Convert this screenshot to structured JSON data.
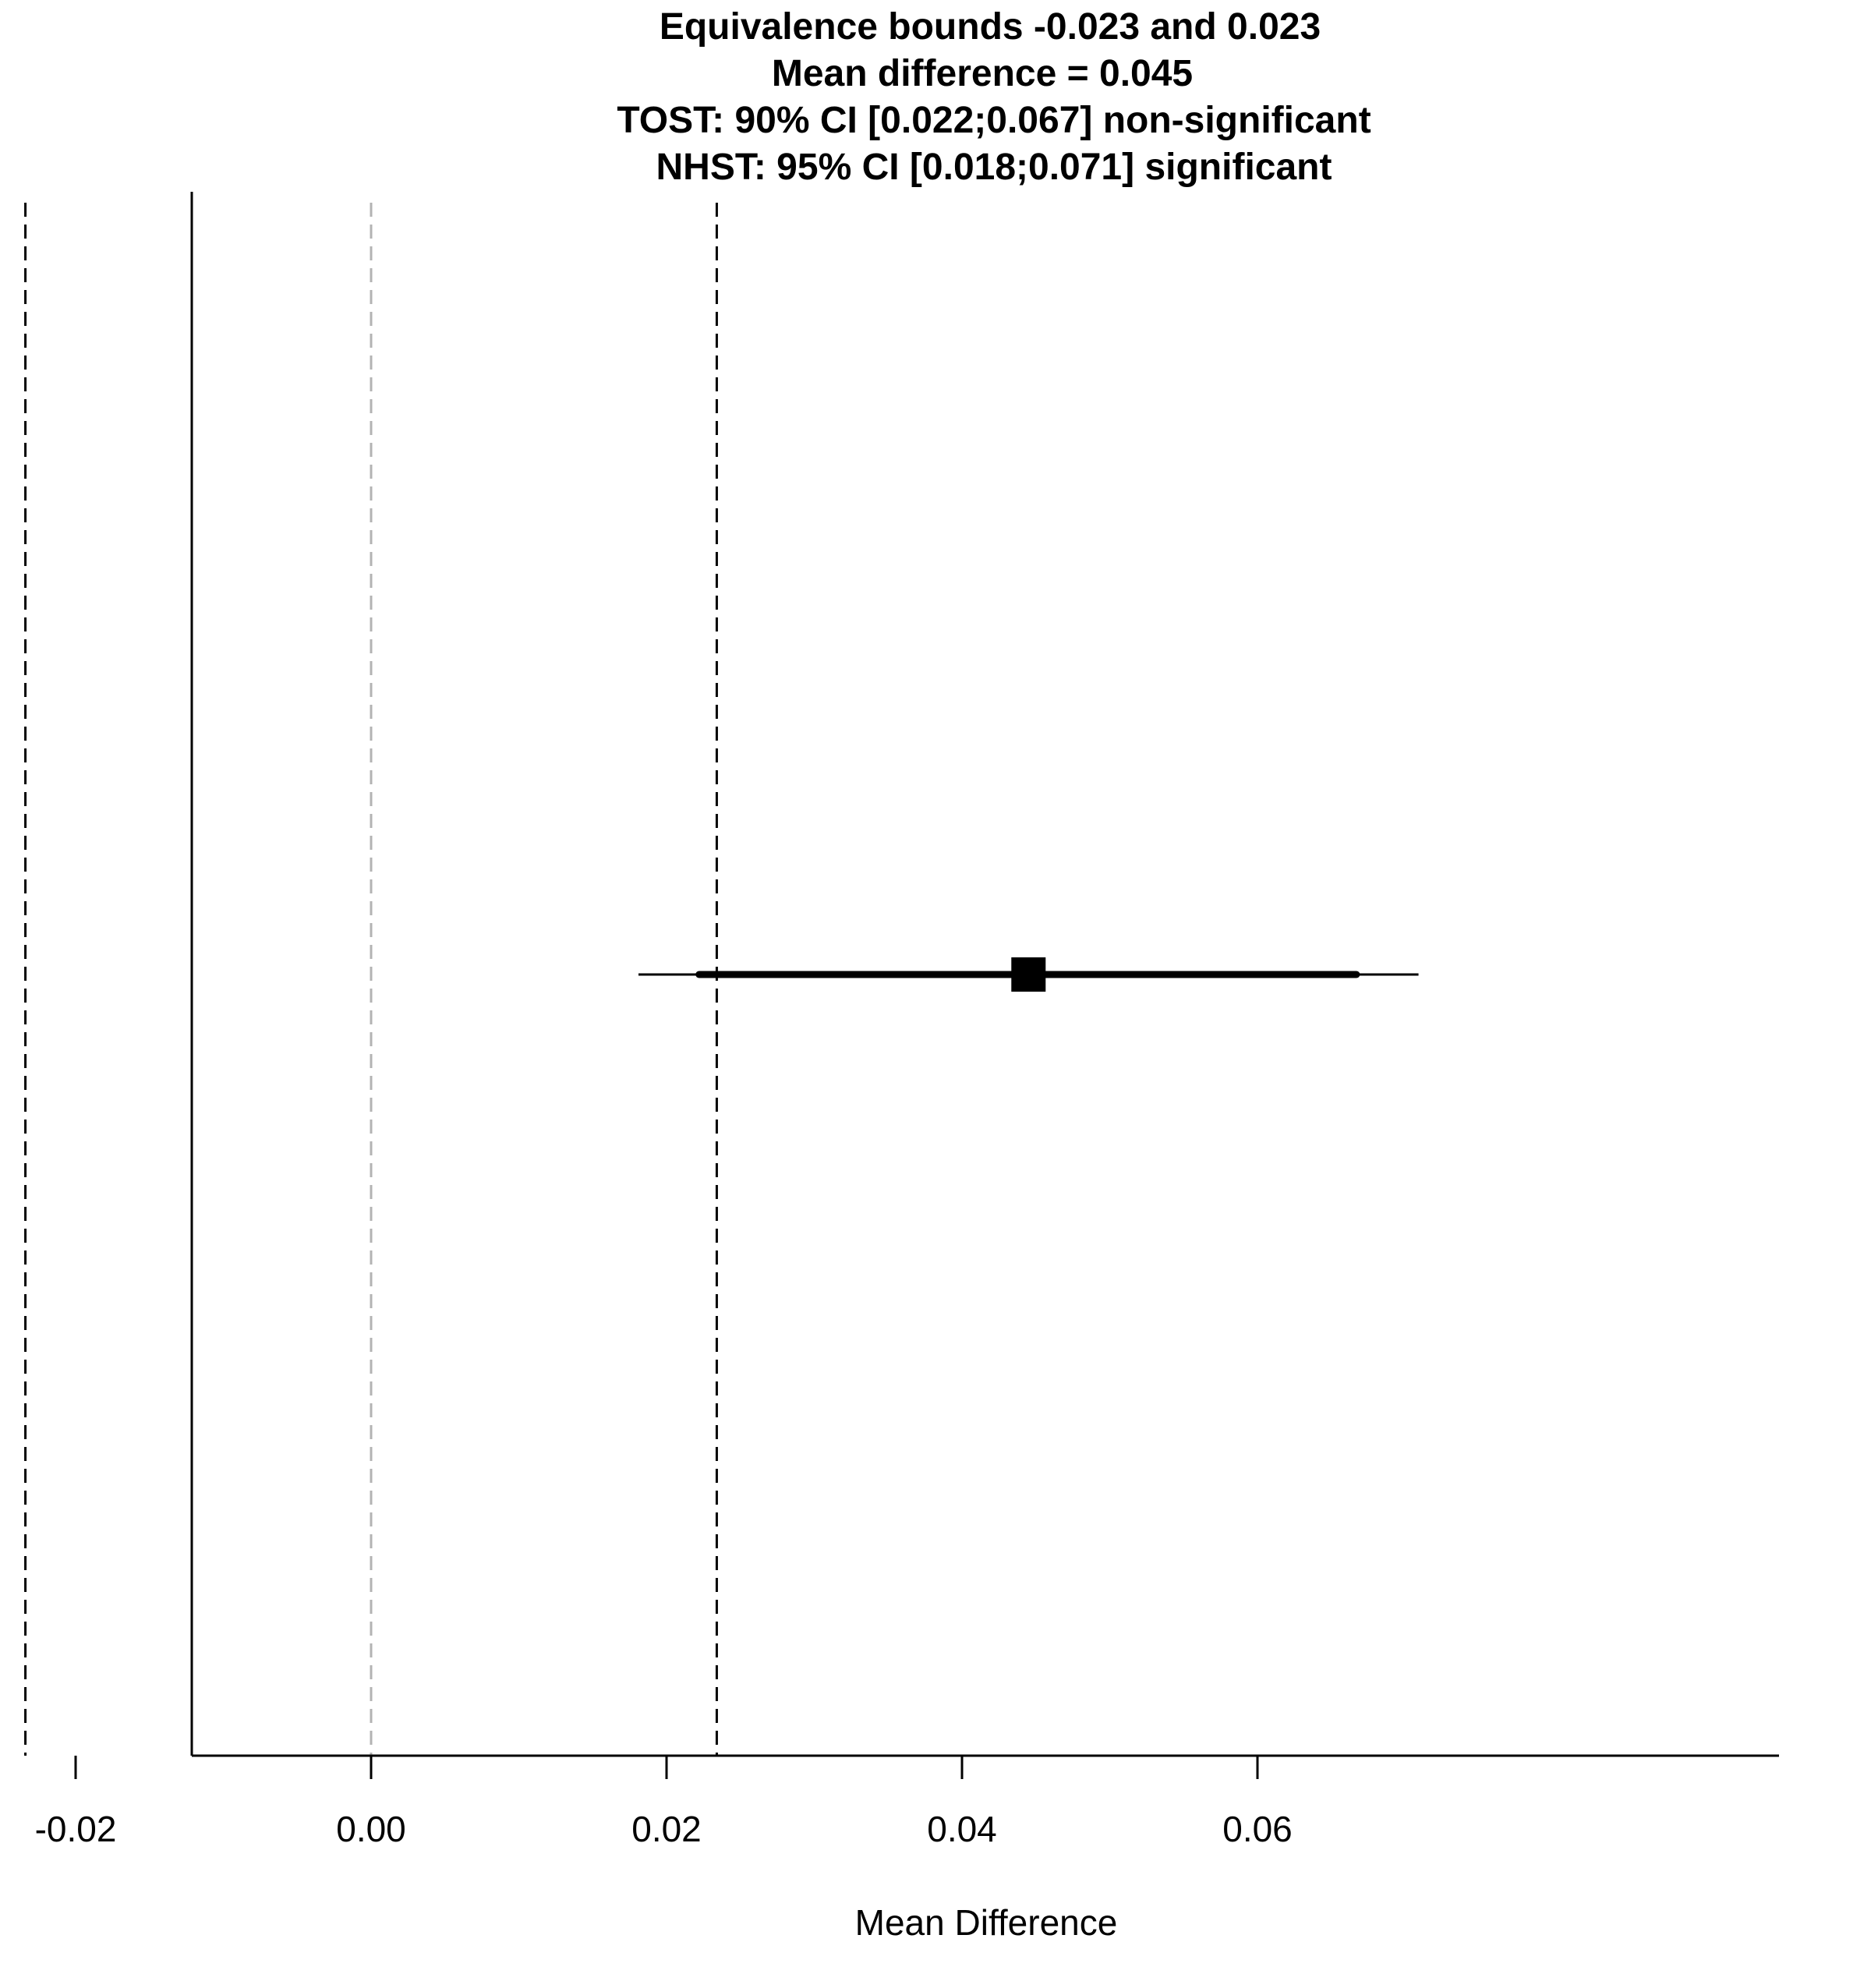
{
  "chart_data": {
    "type": "forest",
    "title_lines": [
      "Equivalence bounds -0.023 and 0.023",
      "Mean difference = 0.045",
      "TOST: 90% CI [0.022;0.067] non-significant",
      "NHST: 95% CI [0.018;0.071] significant"
    ],
    "xlabel": "Mean Difference",
    "ylabel": "",
    "xlim": [
      -0.032,
      0.075
    ],
    "xticks": [
      -0.02,
      0.0,
      0.02,
      0.04,
      0.06
    ],
    "xtick_labels": [
      "-0.02",
      "0.00",
      "0.02",
      "0.04",
      "0.06"
    ],
    "grid": false,
    "equivalence_bounds": [
      -0.0234,
      0.0234
    ],
    "reference_line": 0,
    "estimate": 0.0445,
    "ci_90": [
      0.0222,
      0.0667
    ],
    "ci_95": [
      0.0181,
      0.0709
    ],
    "colors": {
      "marks": "#000000",
      "reference_line": "#b3b3b3",
      "bounds": "#000000"
    }
  }
}
